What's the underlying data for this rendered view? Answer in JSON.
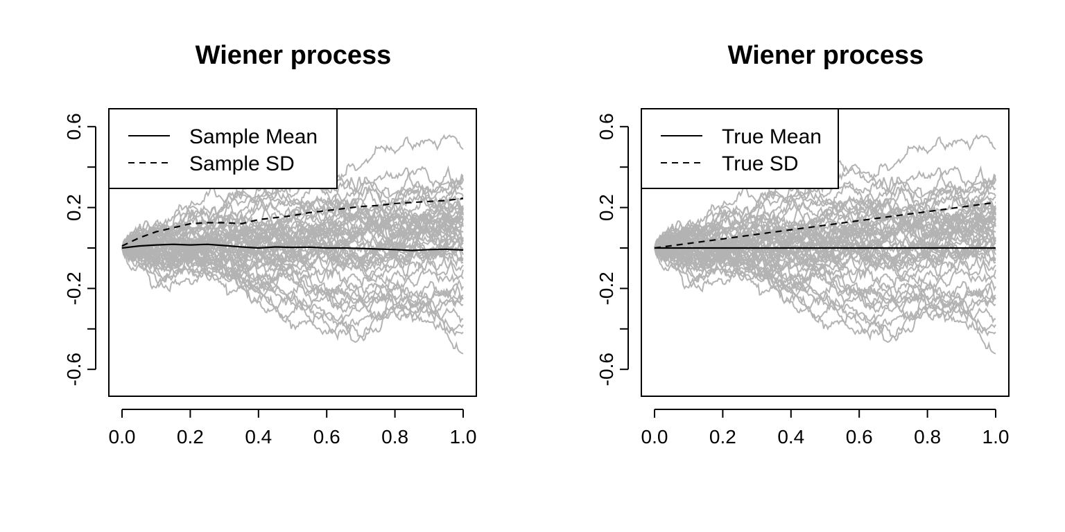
{
  "chart_data": [
    {
      "type": "line",
      "title": "Wiener process",
      "xlabel": "",
      "ylabel": "",
      "xlim": [
        0.0,
        1.0
      ],
      "ylim": [
        -0.72,
        0.72
      ],
      "x_ticks": [
        "0.0",
        "0.2",
        "0.4",
        "0.6",
        "0.8",
        "1.0"
      ],
      "y_ticks": [
        "-0.6",
        "-0.2",
        "0.2",
        "0.6"
      ],
      "y_minor_ticks": [
        -0.4,
        0.0,
        0.4
      ],
      "grid": false,
      "legend_position": "top-left",
      "path_color": "#b3b3b3",
      "num_paths": 50,
      "series": [
        {
          "name": "Sample Mean",
          "style": "solid",
          "color": "#000000",
          "x": [
            0.0,
            0.05,
            0.1,
            0.15,
            0.2,
            0.25,
            0.3,
            0.35,
            0.4,
            0.45,
            0.5,
            0.55,
            0.6,
            0.65,
            0.7,
            0.75,
            0.8,
            0.85,
            0.9,
            0.95,
            1.0
          ],
          "values": [
            0.0,
            0.01,
            0.015,
            0.018,
            0.015,
            0.018,
            0.012,
            0.005,
            0.0,
            0.005,
            0.003,
            0.004,
            0.0,
            0.0,
            -0.002,
            -0.005,
            -0.008,
            -0.012,
            -0.008,
            -0.006,
            -0.01
          ]
        },
        {
          "name": "Sample SD",
          "style": "dashed",
          "color": "#000000",
          "x": [
            0.0,
            0.05,
            0.1,
            0.15,
            0.2,
            0.25,
            0.3,
            0.35,
            0.4,
            0.45,
            0.5,
            0.55,
            0.6,
            0.65,
            0.7,
            0.75,
            0.8,
            0.85,
            0.9,
            0.95,
            1.0
          ],
          "values": [
            0.01,
            0.05,
            0.08,
            0.1,
            0.12,
            0.125,
            0.125,
            0.12,
            0.14,
            0.15,
            0.16,
            0.175,
            0.185,
            0.195,
            0.205,
            0.21,
            0.22,
            0.225,
            0.23,
            0.235,
            0.245
          ]
        }
      ]
    },
    {
      "type": "line",
      "title": "Wiener process",
      "xlabel": "",
      "ylabel": "",
      "xlim": [
        0.0,
        1.0
      ],
      "ylim": [
        -0.72,
        0.72
      ],
      "x_ticks": [
        "0.0",
        "0.2",
        "0.4",
        "0.6",
        "0.8",
        "1.0"
      ],
      "y_ticks": [
        "-0.6",
        "-0.2",
        "0.2",
        "0.6"
      ],
      "y_minor_ticks": [
        -0.4,
        0.0,
        0.4
      ],
      "grid": false,
      "legend_position": "top-left",
      "path_color": "#b3b3b3",
      "num_paths": 50,
      "series": [
        {
          "name": "True Mean",
          "style": "solid",
          "color": "#000000",
          "x": [
            0.0,
            1.0
          ],
          "values": [
            0.0,
            0.0
          ]
        },
        {
          "name": "True SD",
          "style": "dashed",
          "color": "#000000",
          "x": [
            0.0,
            1.0
          ],
          "values": [
            0.0,
            0.225
          ]
        }
      ]
    }
  ]
}
